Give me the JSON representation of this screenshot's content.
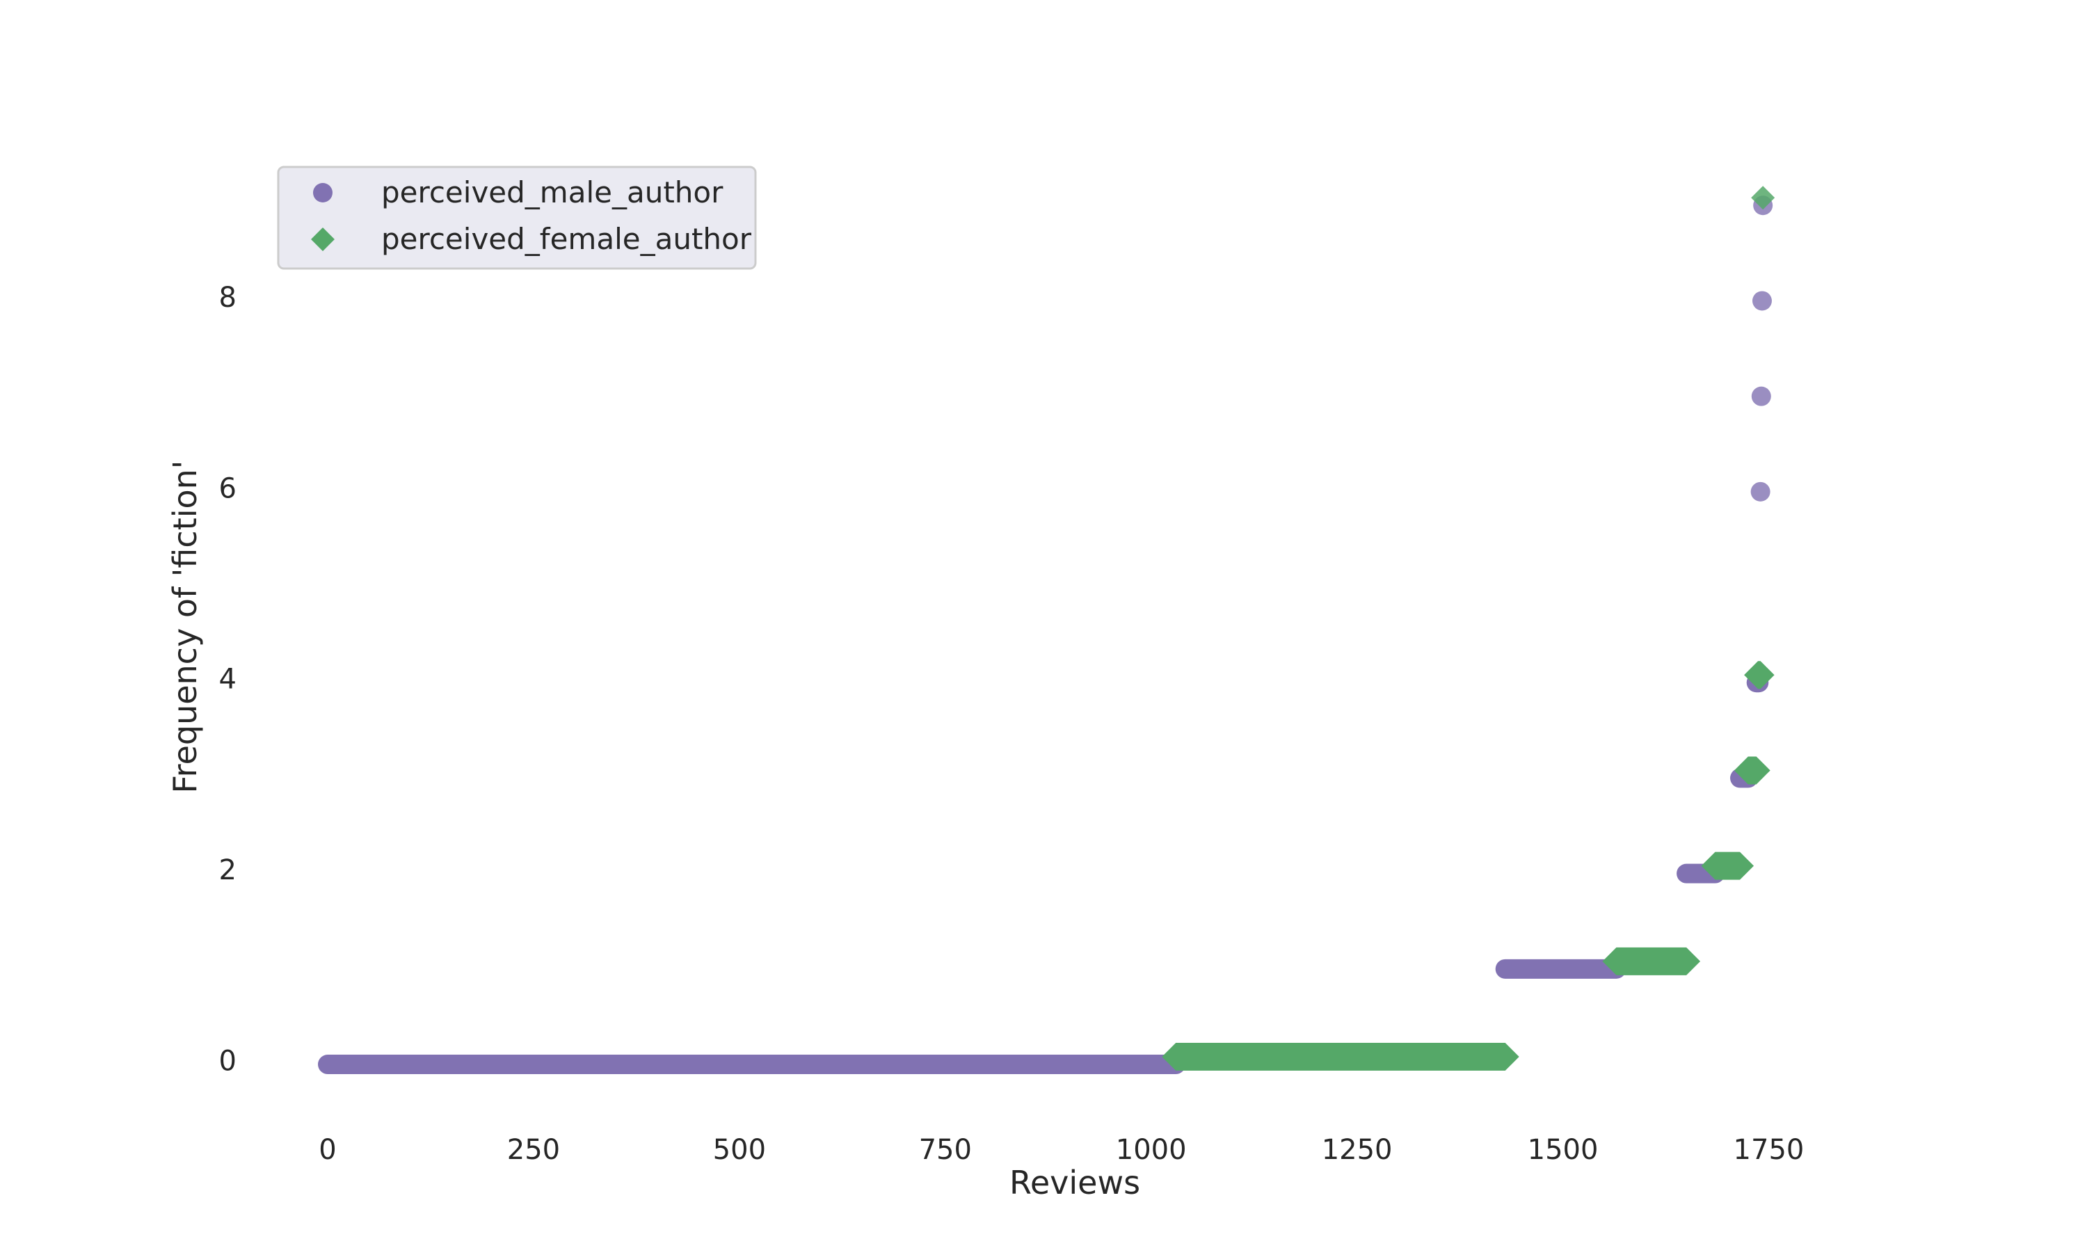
{
  "chart_data": {
    "type": "scatter",
    "title": "",
    "xlabel": "Reviews",
    "ylabel": "Frequency of 'fiction'",
    "xlim": [
      -60,
      1900
    ],
    "ylim": [
      -0.55,
      9.8
    ],
    "xticks": [
      0,
      250,
      500,
      750,
      1000,
      1250,
      1500,
      1750
    ],
    "yticks": [
      0,
      2,
      4,
      6,
      8
    ],
    "grid": false,
    "legend_position": "top-left",
    "series": [
      {
        "name": "perceived_male_author",
        "marker": "circle",
        "color": "#8172b2",
        "offset": -0.04,
        "segments": [
          {
            "y": 0,
            "x_start": 0,
            "x_end": 1030
          },
          {
            "y": 1,
            "x_start": 1430,
            "x_end": 1565
          },
          {
            "y": 2,
            "x_start": 1650,
            "x_end": 1685
          },
          {
            "y": 3,
            "x_start": 1715,
            "x_end": 1725
          },
          {
            "y": 4,
            "x_start": 1735,
            "x_end": 1738
          }
        ],
        "points": [
          {
            "x": 1740,
            "y": 6
          },
          {
            "x": 1741,
            "y": 7
          },
          {
            "x": 1742,
            "y": 8
          },
          {
            "x": 1743,
            "y": 9
          }
        ]
      },
      {
        "name": "perceived_female_author",
        "marker": "diamond",
        "color": "#55a868",
        "offset": 0.04,
        "segments": [
          {
            "y": 0,
            "x_start": 1030,
            "x_end": 1430
          },
          {
            "y": 1,
            "x_start": 1565,
            "x_end": 1650
          },
          {
            "y": 2,
            "x_start": 1685,
            "x_end": 1715
          },
          {
            "y": 3,
            "x_start": 1725,
            "x_end": 1735
          },
          {
            "y": 4,
            "x_start": 1737,
            "x_end": 1740
          }
        ],
        "points": [
          {
            "x": 1743,
            "y": 9
          }
        ]
      }
    ]
  }
}
